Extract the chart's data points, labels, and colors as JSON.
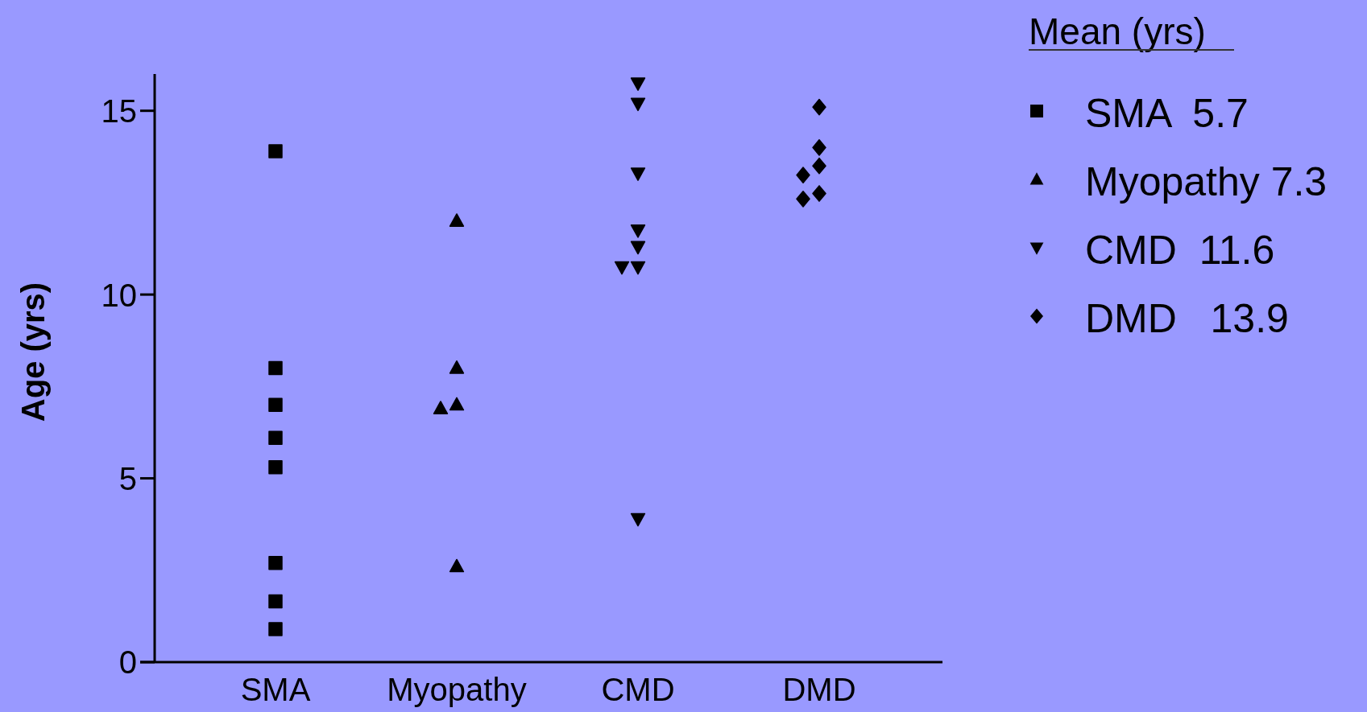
{
  "chart_data": {
    "type": "scatter",
    "ylabel": "Age (yrs)",
    "legend_title": "Mean (yrs)",
    "legend": "right",
    "categories": [
      "SMA",
      "Myopathy",
      "CMD",
      "DMD"
    ],
    "ylim": [
      0,
      16
    ],
    "yticks": [
      0,
      5,
      10,
      15
    ],
    "grid": false,
    "series": [
      {
        "name": "SMA  5.7",
        "color": "#000000",
        "marker": "square",
        "x": [
          "SMA",
          "SMA",
          "SMA",
          "SMA",
          "SMA",
          "SMA",
          "SMA",
          "SMA"
        ],
        "values": [
          13.9,
          8.0,
          7.0,
          6.1,
          5.3,
          2.7,
          1.65,
          0.9
        ]
      },
      {
        "name": "Myopathy 7.3",
        "color": "#000000",
        "marker": "triangle",
        "x": [
          "Myopathy",
          "Myopathy",
          "Myopathy",
          "Myopathy",
          "Myopathy"
        ],
        "values": [
          12.0,
          8.0,
          7.0,
          6.9,
          2.6
        ]
      },
      {
        "name": "CMD  11.6",
        "color": "#000000",
        "marker": "triangle-down",
        "x": [
          "CMD",
          "CMD",
          "CMD",
          "CMD",
          "CMD",
          "CMD",
          "CMD",
          "CMD"
        ],
        "values": [
          15.75,
          15.2,
          13.3,
          11.75,
          11.3,
          10.75,
          10.75,
          3.9
        ]
      },
      {
        "name": "DMD   13.9",
        "color": "#000000",
        "marker": "diamond",
        "x": [
          "DMD",
          "DMD",
          "DMD",
          "DMD",
          "DMD",
          "DMD"
        ],
        "values": [
          15.1,
          14.0,
          13.5,
          13.25,
          12.75,
          12.6
        ]
      }
    ]
  }
}
